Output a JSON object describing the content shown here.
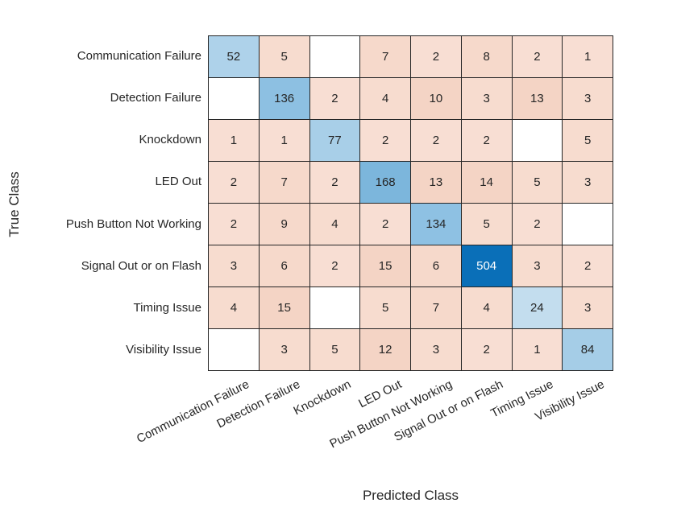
{
  "chart_data": {
    "type": "heatmap",
    "subtype": "confusion_matrix",
    "title": "",
    "xlabel": "Predicted Class",
    "ylabel": "True Class",
    "grid": true,
    "legend": false,
    "classes": [
      "Communication Failure",
      "Detection Failure",
      "Knockdown",
      "LED Out",
      "Push Button Not Working",
      "Signal Out or on Flash",
      "Timing Issue",
      "Visibility Issue"
    ],
    "matrix": [
      [
        52,
        5,
        null,
        7,
        2,
        8,
        2,
        1
      ],
      [
        null,
        136,
        2,
        4,
        10,
        3,
        13,
        3
      ],
      [
        1,
        1,
        77,
        2,
        2,
        2,
        null,
        5
      ],
      [
        2,
        7,
        2,
        168,
        13,
        14,
        5,
        3
      ],
      [
        2,
        9,
        4,
        2,
        134,
        5,
        2,
        null
      ],
      [
        3,
        6,
        2,
        15,
        6,
        504,
        3,
        2
      ],
      [
        4,
        15,
        null,
        5,
        7,
        4,
        24,
        3
      ],
      [
        null,
        3,
        5,
        12,
        3,
        2,
        1,
        84
      ]
    ],
    "diagonal_values": [
      52,
      136,
      77,
      168,
      134,
      504,
      24,
      84
    ],
    "cell_colors": [
      [
        "#aed2ea",
        "#f7dccf",
        "#ffffff",
        "#f6d9cb",
        "#f8ded3",
        "#f6d9cb",
        "#f8ded3",
        "#f8ded3"
      ],
      [
        "#ffffff",
        "#8dc0e2",
        "#f8ded3",
        "#f7dccf",
        "#f4d4c5",
        "#f7dccf",
        "#f4d4c5",
        "#f7dccf"
      ],
      [
        "#f8ded3",
        "#f8ded3",
        "#a8cfe8",
        "#f8ded3",
        "#f8ded3",
        "#f8ded3",
        "#ffffff",
        "#f7dccf"
      ],
      [
        "#f8ded3",
        "#f6d9cb",
        "#f8ded3",
        "#7cb6dc",
        "#f4d4c5",
        "#f4d4c5",
        "#f7dccf",
        "#f7dccf"
      ],
      [
        "#f8ded3",
        "#f6d9cb",
        "#f7dccf",
        "#f8ded3",
        "#8ec1e3",
        "#f7dccf",
        "#f8ded3",
        "#ffffff"
      ],
      [
        "#f7dccf",
        "#f6d9cb",
        "#f8ded3",
        "#f4d4c5",
        "#f6d9cb",
        "#0a6fb8",
        "#f7dccf",
        "#f8ded3"
      ],
      [
        "#f7dccf",
        "#f4d4c5",
        "#ffffff",
        "#f7dccf",
        "#f6d9cb",
        "#f7dccf",
        "#c3ddee",
        "#f7dccf"
      ],
      [
        "#ffffff",
        "#f7dccf",
        "#f7dccf",
        "#f4d4c5",
        "#f7dccf",
        "#f8ded3",
        "#f8ded3",
        "#a5cde7"
      ]
    ],
    "colors": {
      "diagonal_base": "#0072bd",
      "off_diagonal_base": "#d95319",
      "empty_cell": "#ffffff",
      "grid_line": "#262626",
      "text": "#262626",
      "max_cell_text": "#ffffff"
    }
  }
}
